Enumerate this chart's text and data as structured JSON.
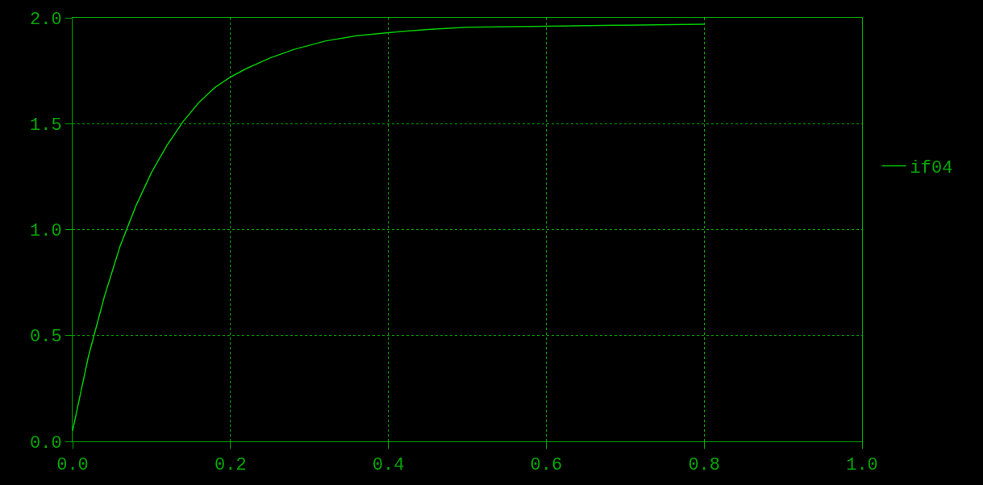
{
  "chart_data": {
    "type": "line",
    "xlim": [
      0,
      1.0
    ],
    "ylim": [
      0,
      2.0
    ],
    "xticks": [
      {
        "value": 0,
        "label": "0.0"
      },
      {
        "value": 0.2,
        "label": "0.2"
      },
      {
        "value": 0.4,
        "label": "0.4"
      },
      {
        "value": 0.6,
        "label": "0.6"
      },
      {
        "value": 0.8,
        "label": "0.8"
      },
      {
        "value": 1.0,
        "label": "1.0"
      }
    ],
    "yticks": [
      {
        "value": 0,
        "label": "0.0"
      },
      {
        "value": 0.5,
        "label": "0.5"
      },
      {
        "value": 1.0,
        "label": "1.0"
      },
      {
        "value": 1.5,
        "label": "1.5"
      },
      {
        "value": 2.0,
        "label": "2.0"
      }
    ],
    "grid": true,
    "legend": "right",
    "marker": "none",
    "line_style": "solid",
    "series": [
      {
        "name": "if04",
        "color": "#00c800",
        "x": [
          0,
          0.02,
          0.04,
          0.06,
          0.08,
          0.1,
          0.12,
          0.14,
          0.16,
          0.18,
          0.2,
          0.22,
          0.25,
          0.28,
          0.32,
          0.36,
          0.4,
          0.45,
          0.5,
          0.6,
          0.7,
          0.8
        ],
        "values": [
          0.05,
          0.4,
          0.68,
          0.92,
          1.11,
          1.27,
          1.4,
          1.51,
          1.6,
          1.67,
          1.72,
          1.76,
          1.81,
          1.85,
          1.89,
          1.915,
          1.93,
          1.945,
          1.955,
          1.96,
          1.965,
          1.97
        ]
      }
    ]
  }
}
